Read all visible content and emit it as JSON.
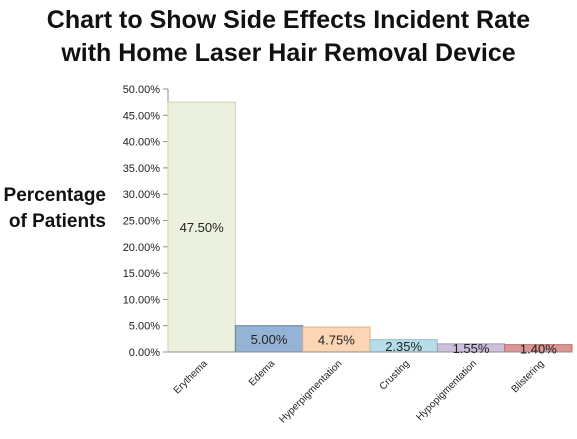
{
  "chart_data": {
    "type": "bar",
    "title_lines": [
      "Chart to Show Side Effects Incident Rate",
      "with Home Laser Hair Removal Device"
    ],
    "ylabel_lines": [
      "Percentage",
      "of Patients"
    ],
    "xlabel": "",
    "categories": [
      "Erythema",
      "Edema",
      "Hyperpigmentation",
      "Crusting",
      "Hypopigmentation",
      "Blistering"
    ],
    "values": [
      47.5,
      5.0,
      4.75,
      2.35,
      1.55,
      1.4
    ],
    "data_labels": [
      "47.50%",
      "5.00%",
      "4.75%",
      "2.35%",
      "1.55%",
      "1.40%"
    ],
    "colors": [
      "#ebf1de",
      "#95b3d7",
      "#fcd5b4",
      "#b7dee8",
      "#ccc0da",
      "#da9694"
    ],
    "edge_colors": [
      "#c4d79b",
      "#5b82b5",
      "#e6b088",
      "#8cc5d3",
      "#a698be",
      "#b86f6c"
    ],
    "ylim": [
      0,
      50
    ],
    "yticks": [
      0,
      5,
      10,
      15,
      20,
      25,
      30,
      35,
      40,
      45,
      50
    ],
    "ytick_labels": [
      "0.00%",
      "5.00%",
      "10.00%",
      "15.00%",
      "20.00%",
      "25.00%",
      "30.00%",
      "35.00%",
      "40.00%",
      "45.00%",
      "50.00%"
    ],
    "grid": false,
    "legend": "none"
  }
}
